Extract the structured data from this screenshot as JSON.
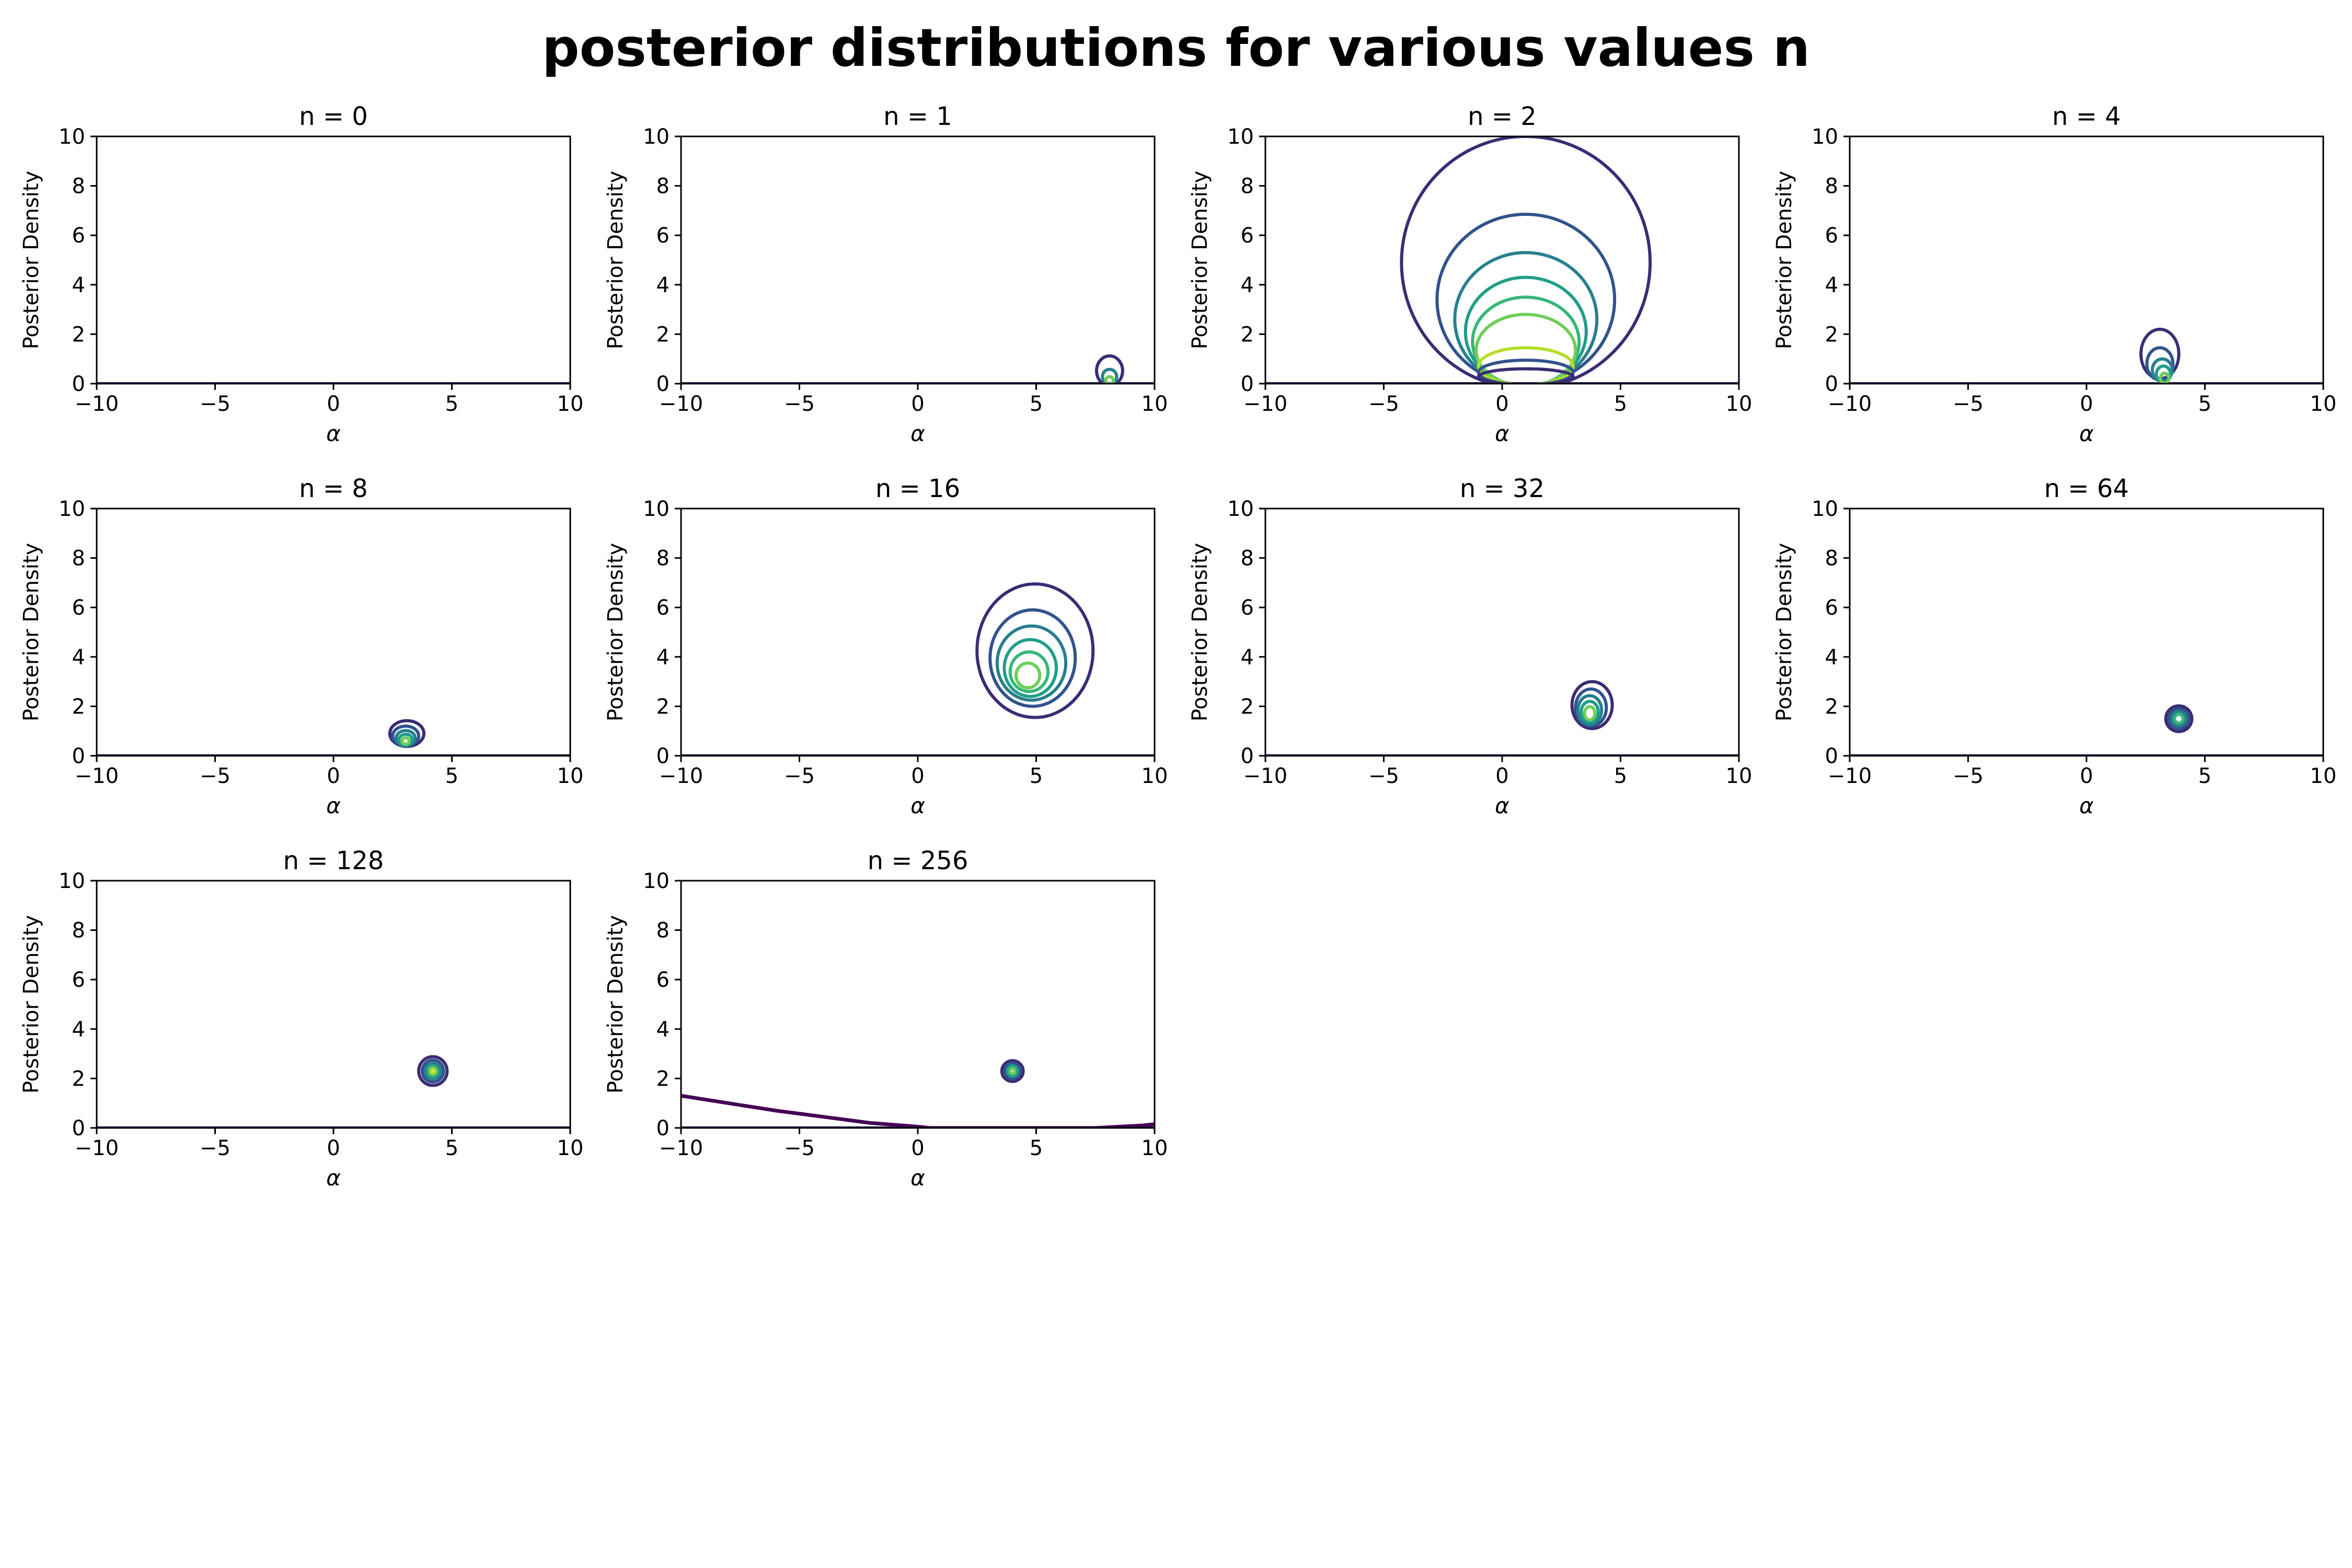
{
  "figure": {
    "title": "posterior distributions for various values n"
  },
  "chart_data": [
    {
      "type": "contour",
      "title": "n = 0",
      "xlabel": "α",
      "ylabel": "Posterior Density",
      "xlim": [
        -10,
        10
      ],
      "ylim": [
        0,
        10
      ],
      "xticks": [
        -10,
        -5,
        0,
        5,
        10
      ],
      "yticks": [
        0,
        2,
        4,
        6,
        8,
        10
      ],
      "contours": []
    },
    {
      "type": "contour",
      "title": "n = 1",
      "xlabel": "α",
      "ylabel": "Posterior Density",
      "xlim": [
        -10,
        10
      ],
      "ylim": [
        0,
        10
      ],
      "xticks": [
        -10,
        -5,
        0,
        5,
        10
      ],
      "yticks": [
        0,
        2,
        4,
        6,
        8,
        10
      ],
      "contours": [
        {
          "cx": 8.1,
          "cy": 0.52,
          "rx": 0.55,
          "ry": 0.6,
          "level": 0
        },
        {
          "cx": 8.1,
          "cy": 0.28,
          "rx": 0.3,
          "ry": 0.3,
          "level": 2
        },
        {
          "cx": 8.1,
          "cy": 0.13,
          "rx": 0.16,
          "ry": 0.15,
          "level": 5
        }
      ]
    },
    {
      "type": "contour",
      "title": "n = 2",
      "xlabel": "α",
      "ylabel": "Posterior Density",
      "xlim": [
        -10,
        10
      ],
      "ylim": [
        0,
        10
      ],
      "xticks": [
        -10,
        -5,
        0,
        5,
        10
      ],
      "yticks": [
        0,
        2,
        4,
        6,
        8,
        10
      ],
      "contours": [
        {
          "cx": 1.0,
          "cy": 4.9,
          "rx": 5.25,
          "ry": 5.1,
          "level": 0
        },
        {
          "cx": 1.0,
          "cy": 3.4,
          "rx": 3.75,
          "ry": 3.45,
          "level": 1
        },
        {
          "cx": 1.0,
          "cy": 2.6,
          "rx": 3.0,
          "ry": 2.7,
          "level": 2
        },
        {
          "cx": 1.0,
          "cy": 2.1,
          "rx": 2.55,
          "ry": 2.2,
          "level": 3
        },
        {
          "cx": 1.0,
          "cy": 1.7,
          "rx": 2.25,
          "ry": 1.8,
          "level": 4
        },
        {
          "cx": 1.0,
          "cy": 1.35,
          "rx": 2.1,
          "ry": 1.45,
          "level": 5
        },
        {
          "cx": 1.0,
          "cy": 0.7,
          "rx": 2.0,
          "ry": 0.75,
          "level": 6
        },
        {
          "cx": 1.0,
          "cy": 0.45,
          "rx": 2.0,
          "ry": 0.5,
          "level": 1
        },
        {
          "cx": 1.0,
          "cy": 0.28,
          "rx": 2.0,
          "ry": 0.32,
          "level": 0
        }
      ]
    },
    {
      "type": "contour",
      "title": "n = 4",
      "xlabel": "α",
      "ylabel": "Posterior Density",
      "xlim": [
        -10,
        10
      ],
      "ylim": [
        0,
        10
      ],
      "xticks": [
        -10,
        -5,
        0,
        5,
        10
      ],
      "yticks": [
        0,
        2,
        4,
        6,
        8,
        10
      ],
      "contours": [
        {
          "cx": 3.1,
          "cy": 1.2,
          "rx": 0.8,
          "ry": 1.0,
          "level": 0
        },
        {
          "cx": 3.1,
          "cy": 0.8,
          "rx": 0.55,
          "ry": 0.65,
          "level": 1
        },
        {
          "cx": 3.2,
          "cy": 0.55,
          "rx": 0.42,
          "ry": 0.45,
          "level": 2
        },
        {
          "cx": 3.25,
          "cy": 0.38,
          "rx": 0.3,
          "ry": 0.33,
          "level": 3
        },
        {
          "cx": 3.3,
          "cy": 0.22,
          "rx": 0.18,
          "ry": 0.2,
          "level": 5
        }
      ]
    },
    {
      "type": "contour",
      "title": "n = 8",
      "xlabel": "α",
      "ylabel": "Posterior Density",
      "xlim": [
        -10,
        10
      ],
      "ylim": [
        0,
        10
      ],
      "xticks": [
        -10,
        -5,
        0,
        5,
        10
      ],
      "yticks": [
        0,
        2,
        4,
        6,
        8,
        10
      ],
      "contours": [
        {
          "cx": 3.1,
          "cy": 0.9,
          "rx": 0.72,
          "ry": 0.52,
          "level": 0
        },
        {
          "cx": 3.05,
          "cy": 0.8,
          "rx": 0.55,
          "ry": 0.4,
          "level": 1
        },
        {
          "cx": 3.05,
          "cy": 0.72,
          "rx": 0.4,
          "ry": 0.3,
          "level": 2
        },
        {
          "cx": 3.05,
          "cy": 0.65,
          "rx": 0.28,
          "ry": 0.22,
          "level": 3
        },
        {
          "cx": 3.05,
          "cy": 0.6,
          "rx": 0.15,
          "ry": 0.13,
          "level": 5
        }
      ]
    },
    {
      "type": "contour",
      "title": "n = 16",
      "xlabel": "α",
      "ylabel": "Posterior Density",
      "xlim": [
        -10,
        10
      ],
      "ylim": [
        0,
        10
      ],
      "xticks": [
        -10,
        -5,
        0,
        5,
        10
      ],
      "yticks": [
        0,
        2,
        4,
        6,
        8,
        10
      ],
      "contours": [
        {
          "cx": 4.95,
          "cy": 4.25,
          "rx": 2.45,
          "ry": 2.7,
          "level": 0
        },
        {
          "cx": 4.85,
          "cy": 3.95,
          "rx": 1.8,
          "ry": 1.95,
          "level": 1
        },
        {
          "cx": 4.8,
          "cy": 3.75,
          "rx": 1.45,
          "ry": 1.5,
          "level": 2
        },
        {
          "cx": 4.75,
          "cy": 3.55,
          "rx": 1.1,
          "ry": 1.15,
          "level": 3
        },
        {
          "cx": 4.7,
          "cy": 3.4,
          "rx": 0.8,
          "ry": 0.8,
          "level": 4
        },
        {
          "cx": 4.65,
          "cy": 3.25,
          "rx": 0.5,
          "ry": 0.5,
          "level": 5
        }
      ]
    },
    {
      "type": "contour",
      "title": "n = 32",
      "xlabel": "α",
      "ylabel": "Posterior Density",
      "xlim": [
        -10,
        10
      ],
      "ylim": [
        0,
        10
      ],
      "xticks": [
        -10,
        -5,
        0,
        5,
        10
      ],
      "yticks": [
        0,
        2,
        4,
        6,
        8,
        10
      ],
      "contours": [
        {
          "cx": 3.8,
          "cy": 2.05,
          "rx": 0.85,
          "ry": 0.95,
          "level": 0
        },
        {
          "cx": 3.75,
          "cy": 1.95,
          "rx": 0.65,
          "ry": 0.75,
          "level": 1
        },
        {
          "cx": 3.7,
          "cy": 1.85,
          "rx": 0.5,
          "ry": 0.58,
          "level": 2
        },
        {
          "cx": 3.7,
          "cy": 1.78,
          "rx": 0.36,
          "ry": 0.42,
          "level": 3
        },
        {
          "cx": 3.7,
          "cy": 1.72,
          "rx": 0.22,
          "ry": 0.27,
          "level": 5
        }
      ]
    },
    {
      "type": "contour",
      "title": "n = 64",
      "xlabel": "α",
      "ylabel": "Posterior Density",
      "xlim": [
        -10,
        10
      ],
      "ylim": [
        0,
        10
      ],
      "xticks": [
        -10,
        -5,
        0,
        5,
        10
      ],
      "yticks": [
        0,
        2,
        4,
        6,
        8,
        10
      ],
      "contours": [
        {
          "cx": 3.9,
          "cy": 1.5,
          "rx": 0.55,
          "ry": 0.52,
          "level": 0
        },
        {
          "cx": 3.9,
          "cy": 1.5,
          "rx": 0.42,
          "ry": 0.4,
          "level": 1
        },
        {
          "cx": 3.9,
          "cy": 1.5,
          "rx": 0.3,
          "ry": 0.29,
          "level": 2
        },
        {
          "cx": 3.9,
          "cy": 1.5,
          "rx": 0.18,
          "ry": 0.18,
          "level": 4
        }
      ]
    },
    {
      "type": "contour",
      "title": "n = 128",
      "xlabel": "α",
      "ylabel": "Posterior Density",
      "xlim": [
        -10,
        10
      ],
      "ylim": [
        0,
        10
      ],
      "xticks": [
        -10,
        -5,
        0,
        5,
        10
      ],
      "yticks": [
        0,
        2,
        4,
        6,
        8,
        10
      ],
      "contours": [
        {
          "cx": 4.2,
          "cy": 2.3,
          "rx": 0.6,
          "ry": 0.58,
          "level": 0
        },
        {
          "cx": 4.2,
          "cy": 2.3,
          "rx": 0.45,
          "ry": 0.44,
          "level": 1
        },
        {
          "cx": 4.2,
          "cy": 2.3,
          "rx": 0.32,
          "ry": 0.31,
          "level": 2
        },
        {
          "cx": 4.2,
          "cy": 2.3,
          "rx": 0.2,
          "ry": 0.2,
          "level": 4
        },
        {
          "cx": 4.2,
          "cy": 2.3,
          "rx": 0.09,
          "ry": 0.09,
          "level": 6
        }
      ]
    },
    {
      "type": "contour",
      "title": "n = 256",
      "xlabel": "α",
      "ylabel": "Posterior Density",
      "xlim": [
        -10,
        10
      ],
      "ylim": [
        0,
        10
      ],
      "xticks": [
        -10,
        -5,
        0,
        5,
        10
      ],
      "yticks": [
        0,
        2,
        4,
        6,
        8,
        10
      ],
      "contours": [
        {
          "cx": 4.0,
          "cy": 2.3,
          "rx": 0.45,
          "ry": 0.42,
          "level": 0
        },
        {
          "cx": 4.0,
          "cy": 2.3,
          "rx": 0.33,
          "ry": 0.31,
          "level": 1
        },
        {
          "cx": 4.0,
          "cy": 2.3,
          "rx": 0.22,
          "ry": 0.21,
          "level": 3
        },
        {
          "cx": 4.0,
          "cy": 2.3,
          "rx": 0.1,
          "ry": 0.1,
          "level": 5
        }
      ],
      "boundary_line": {
        "x": [
          -10,
          -8,
          -6,
          -4,
          -2,
          0,
          0.5,
          7.5,
          9.5,
          10
        ],
        "y": [
          1.3,
          1.0,
          0.7,
          0.45,
          0.2,
          0.05,
          0.0,
          0.0,
          0.1,
          0.15
        ]
      }
    }
  ],
  "colors": {
    "levels": [
      "#3b2c74",
      "#31538d",
      "#277f8e",
      "#1f9e89",
      "#35b779",
      "#6ece58",
      "#b5de2b",
      "#fde725"
    ],
    "boundary": "#440154",
    "axis": "#000000"
  }
}
